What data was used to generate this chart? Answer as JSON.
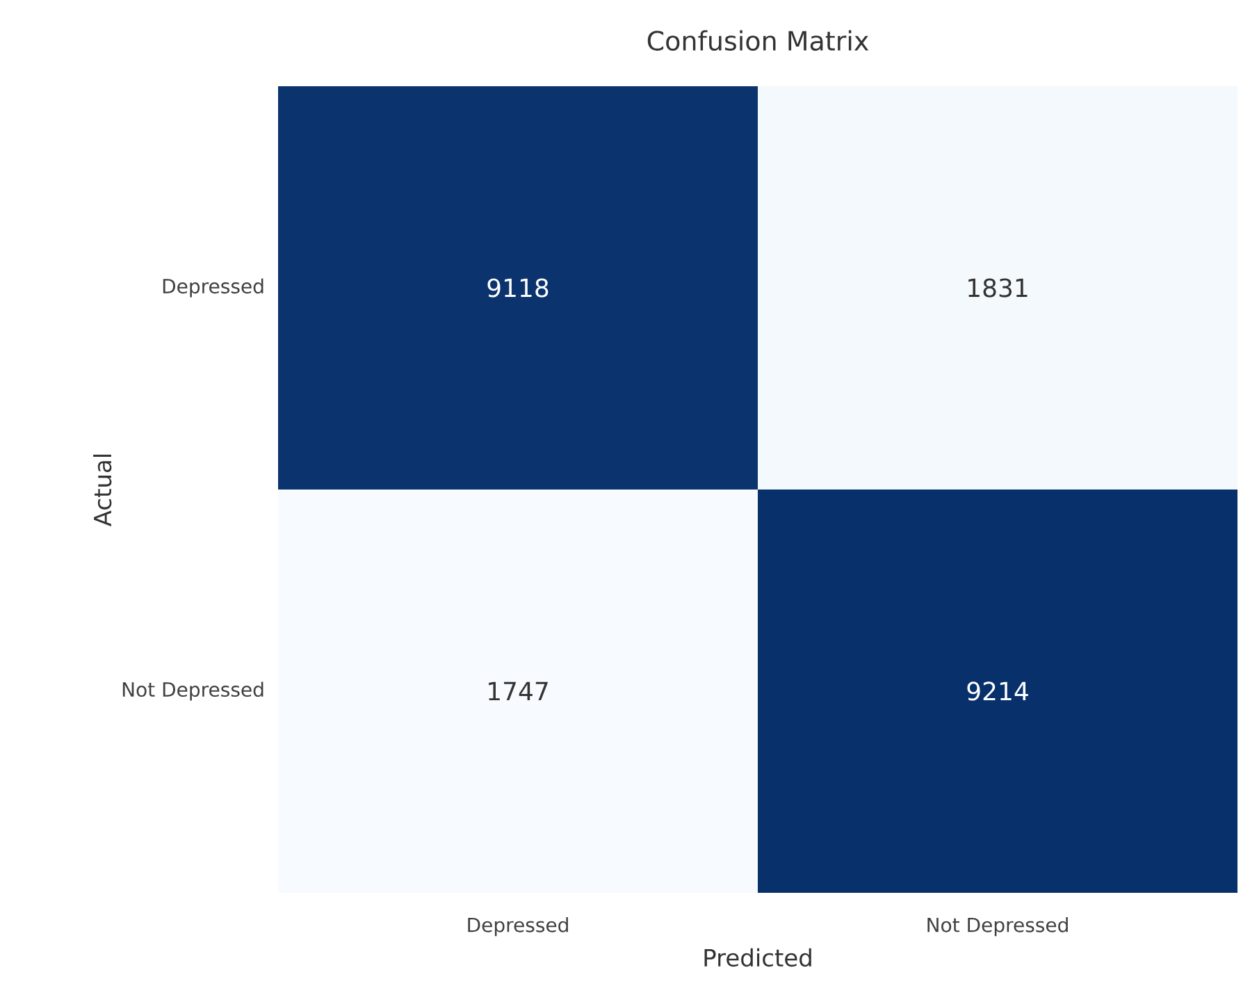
{
  "chart_data": {
    "type": "heatmap",
    "title": "Confusion Matrix",
    "xlabel": "Predicted",
    "ylabel": "Actual",
    "categories": [
      "Depressed",
      "Not Depressed"
    ],
    "y_categories": [
      "Depressed",
      "Not Depressed"
    ],
    "cells": [
      [
        9118,
        1831
      ],
      [
        1747,
        9214
      ]
    ],
    "data_labels": true
  }
}
